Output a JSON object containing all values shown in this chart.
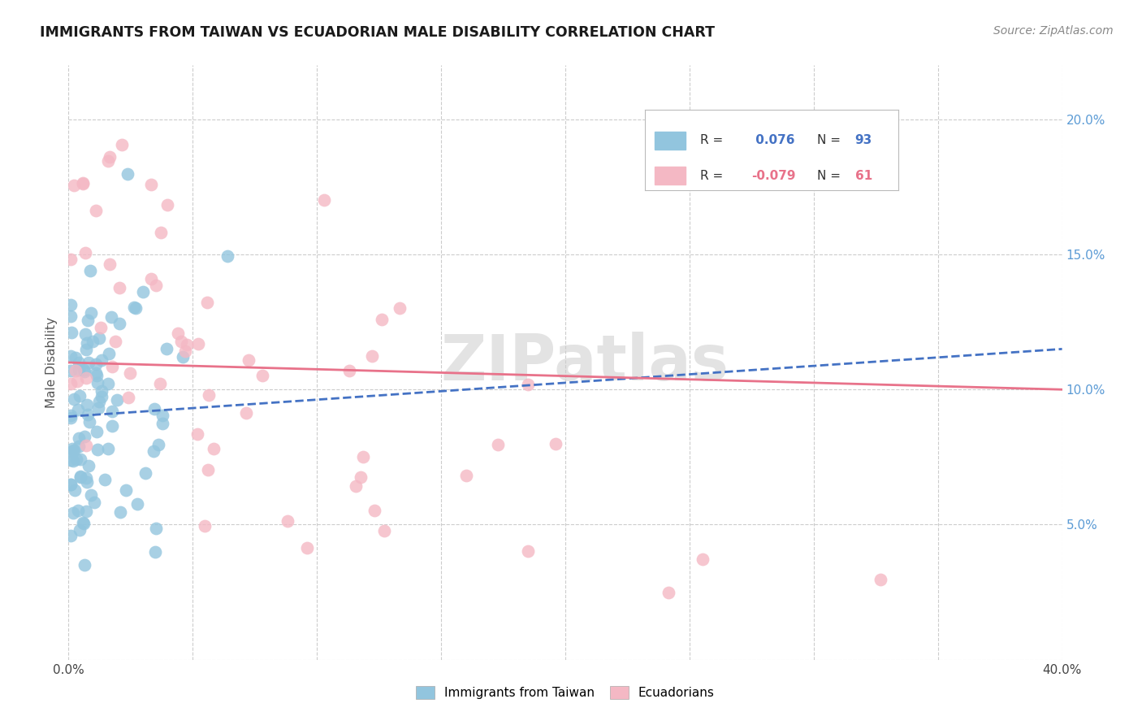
{
  "title": "IMMIGRANTS FROM TAIWAN VS ECUADORIAN MALE DISABILITY CORRELATION CHART",
  "source": "Source: ZipAtlas.com",
  "ylabel": "Male Disability",
  "xlim": [
    0.0,
    0.4
  ],
  "ylim": [
    0.0,
    0.22
  ],
  "x_tick_positions": [
    0.0,
    0.05,
    0.1,
    0.15,
    0.2,
    0.25,
    0.3,
    0.35,
    0.4
  ],
  "x_tick_labels": [
    "0.0%",
    "",
    "",
    "",
    "",
    "",
    "",
    "",
    "40.0%"
  ],
  "y_tick_positions": [
    0.0,
    0.05,
    0.1,
    0.15,
    0.2
  ],
  "y_tick_labels_right": [
    "",
    "5.0%",
    "10.0%",
    "15.0%",
    "20.0%"
  ],
  "color_blue": "#92c5de",
  "color_pink": "#f4b8c4",
  "color_blue_line": "#4472c4",
  "color_pink_line": "#e8728a",
  "watermark": "ZIPatlas",
  "taiwan_seed": 12,
  "ecuador_seed": 99,
  "legend_r1_prefix": "R = ",
  "legend_r1_value": " 0.076",
  "legend_n1_prefix": "N = ",
  "legend_n1_value": "93",
  "legend_r2_prefix": "R = ",
  "legend_r2_value": "-0.079",
  "legend_n2_prefix": "N = ",
  "legend_n2_value": "61"
}
